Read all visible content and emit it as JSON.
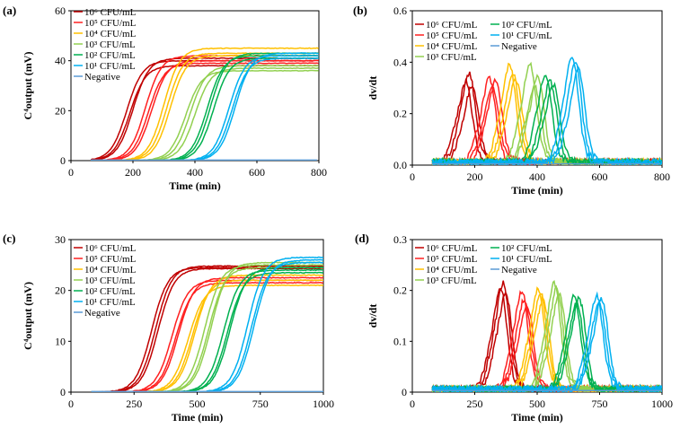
{
  "colors": {
    "1e6": "#c00000",
    "1e5": "#ff2020",
    "1e4": "#ffc000",
    "1e3": "#92d050",
    "1e2": "#00b050",
    "1e1": "#00b0f0",
    "neg": "#5b9bd5"
  },
  "chart_data": [
    {
      "type": "line",
      "panel_label": "(a)",
      "xlabel": "Time (min)",
      "ylabel": "C⁴output (mV)",
      "xlim": [
        0,
        800
      ],
      "ylim": [
        0,
        60
      ],
      "xticks": [
        0,
        200,
        400,
        600,
        800
      ],
      "yticks": [
        0,
        20,
        40,
        60
      ],
      "legend_position": "top-left",
      "series": [
        {
          "name": "10⁶ CFU/mL",
          "color_key": "1e6",
          "curves": [
            {
              "mid": 180,
              "top": 40
            },
            {
              "mid": 190,
              "top": 38
            },
            {
              "mid": 200,
              "top": 41
            }
          ]
        },
        {
          "name": "10⁵ CFU/mL",
          "color_key": "1e5",
          "curves": [
            {
              "mid": 240,
              "top": 42
            },
            {
              "mid": 250,
              "top": 39
            },
            {
              "mid": 260,
              "top": 40
            }
          ]
        },
        {
          "name": "10⁴ CFU/mL",
          "color_key": "1e4",
          "curves": [
            {
              "mid": 300,
              "top": 45
            },
            {
              "mid": 310,
              "top": 43
            },
            {
              "mid": 320,
              "top": 42
            }
          ]
        },
        {
          "name": "10³ CFU/mL",
          "color_key": "1e3",
          "curves": [
            {
              "mid": 370,
              "top": 36
            },
            {
              "mid": 385,
              "top": 38
            },
            {
              "mid": 400,
              "top": 37
            }
          ]
        },
        {
          "name": "10² CFU/mL",
          "color_key": "1e2",
          "curves": [
            {
              "mid": 440,
              "top": 42
            },
            {
              "mid": 450,
              "top": 43
            },
            {
              "mid": 460,
              "top": 41
            }
          ]
        },
        {
          "name": "10¹ CFU/mL",
          "color_key": "1e1",
          "curves": [
            {
              "mid": 510,
              "top": 42
            },
            {
              "mid": 520,
              "top": 41
            },
            {
              "mid": 530,
              "top": 43
            }
          ]
        },
        {
          "name": "Negative",
          "color_key": "neg",
          "curves": [
            {
              "mid": null,
              "top": 0.2
            }
          ]
        }
      ]
    },
    {
      "type": "line",
      "panel_label": "(b)",
      "xlabel": "Time (min)",
      "ylabel": "dv/dt",
      "xlim": [
        0,
        800
      ],
      "ylim": [
        0,
        0.6
      ],
      "xticks": [
        0,
        200,
        400,
        600,
        800
      ],
      "yticks": [
        0.0,
        0.2,
        0.4,
        0.6
      ],
      "legend_position": "top-left",
      "series": [
        {
          "name": "10⁶ CFU/mL",
          "color_key": "1e6",
          "curves": [
            {
              "mid": 175,
              "top": 0.33
            },
            {
              "mid": 165,
              "top": 0.3
            },
            {
              "mid": 185,
              "top": 0.29
            }
          ]
        },
        {
          "name": "10⁵ CFU/mL",
          "color_key": "1e5",
          "curves": [
            {
              "mid": 240,
              "top": 0.31
            },
            {
              "mid": 250,
              "top": 0.28
            },
            {
              "mid": 260,
              "top": 0.3
            }
          ]
        },
        {
          "name": "10⁴ CFU/mL",
          "color_key": "1e4",
          "curves": [
            {
              "mid": 305,
              "top": 0.36
            },
            {
              "mid": 315,
              "top": 0.33
            },
            {
              "mid": 325,
              "top": 0.31
            }
          ]
        },
        {
          "name": "10³ CFU/mL",
          "color_key": "1e3",
          "curves": [
            {
              "mid": 370,
              "top": 0.37
            },
            {
              "mid": 385,
              "top": 0.28
            },
            {
              "mid": 395,
              "top": 0.32
            }
          ]
        },
        {
          "name": "10² CFU/mL",
          "color_key": "1e2",
          "curves": [
            {
              "mid": 420,
              "top": 0.33
            },
            {
              "mid": 435,
              "top": 0.3
            },
            {
              "mid": 445,
              "top": 0.29
            }
          ]
        },
        {
          "name": "10¹ CFU/mL",
          "color_key": "1e1",
          "curves": [
            {
              "mid": 505,
              "top": 0.4
            },
            {
              "mid": 515,
              "top": 0.37
            },
            {
              "mid": 525,
              "top": 0.35
            }
          ]
        },
        {
          "name": "Negative",
          "color_key": "neg",
          "curves": [
            {
              "mid": null,
              "top": 0.005
            }
          ]
        }
      ]
    },
    {
      "type": "line",
      "panel_label": "(c)",
      "xlabel": "Time (min)",
      "ylabel": "C⁴output (mV)",
      "xlim": [
        0,
        1000
      ],
      "ylim": [
        0,
        30
      ],
      "xticks": [
        0,
        250,
        500,
        750,
        1000
      ],
      "yticks": [
        0,
        10,
        20,
        30
      ],
      "legend_position": "top-left",
      "series": [
        {
          "name": "10⁶ CFU/mL",
          "color_key": "1e6",
          "curves": [
            {
              "mid": 320,
              "top": 24.5
            },
            {
              "mid": 335,
              "top": 24.8
            },
            {
              "mid": 345,
              "top": 24.3
            }
          ]
        },
        {
          "name": "10⁵ CFU/mL",
          "color_key": "1e5",
          "curves": [
            {
              "mid": 400,
              "top": 22
            },
            {
              "mid": 415,
              "top": 21.5
            },
            {
              "mid": 425,
              "top": 22.5
            }
          ]
        },
        {
          "name": "10⁴ CFU/mL",
          "color_key": "1e4",
          "curves": [
            {
              "mid": 465,
              "top": 21
            },
            {
              "mid": 480,
              "top": 22
            },
            {
              "mid": 490,
              "top": 23
            }
          ]
        },
        {
          "name": "10³ CFU/mL",
          "color_key": "1e3",
          "curves": [
            {
              "mid": 530,
              "top": 25
            },
            {
              "mid": 545,
              "top": 24.5
            },
            {
              "mid": 555,
              "top": 25.5
            }
          ]
        },
        {
          "name": "10² CFU/mL",
          "color_key": "1e2",
          "curves": [
            {
              "mid": 605,
              "top": 24
            },
            {
              "mid": 620,
              "top": 23.5
            },
            {
              "mid": 630,
              "top": 24.5
            }
          ]
        },
        {
          "name": "10¹ CFU/mL",
          "color_key": "1e1",
          "curves": [
            {
              "mid": 700,
              "top": 26.5
            },
            {
              "mid": 715,
              "top": 25.5
            },
            {
              "mid": 725,
              "top": 26
            }
          ]
        },
        {
          "name": "Negative",
          "color_key": "neg",
          "curves": [
            {
              "mid": null,
              "top": 0.1
            }
          ]
        }
      ]
    },
    {
      "type": "line",
      "panel_label": "(d)",
      "xlabel": "Time (min)",
      "ylabel": "dv/dt",
      "xlim": [
        0,
        1000
      ],
      "ylim": [
        0,
        0.3
      ],
      "xticks": [
        0,
        250,
        500,
        750,
        1000
      ],
      "yticks": [
        0,
        0.1,
        0.2,
        0.3
      ],
      "legend_position": "top-left",
      "series": [
        {
          "name": "10⁶ CFU/mL",
          "color_key": "1e6",
          "curves": [
            {
              "mid": 355,
              "top": 0.2
            },
            {
              "mid": 345,
              "top": 0.19
            },
            {
              "mid": 365,
              "top": 0.18
            }
          ]
        },
        {
          "name": "10⁵ CFU/mL",
          "color_key": "1e5",
          "curves": [
            {
              "mid": 430,
              "top": 0.185
            },
            {
              "mid": 440,
              "top": 0.17
            },
            {
              "mid": 450,
              "top": 0.16
            }
          ]
        },
        {
          "name": "10⁴ CFU/mL",
          "color_key": "1e4",
          "curves": [
            {
              "mid": 495,
              "top": 0.19
            },
            {
              "mid": 505,
              "top": 0.18
            },
            {
              "mid": 515,
              "top": 0.17
            }
          ]
        },
        {
          "name": "10³ CFU/mL",
          "color_key": "1e3",
          "curves": [
            {
              "mid": 560,
              "top": 0.2
            },
            {
              "mid": 570,
              "top": 0.19
            },
            {
              "mid": 580,
              "top": 0.18
            }
          ]
        },
        {
          "name": "10² CFU/mL",
          "color_key": "1e2",
          "curves": [
            {
              "mid": 640,
              "top": 0.175
            },
            {
              "mid": 650,
              "top": 0.165
            },
            {
              "mid": 660,
              "top": 0.17
            }
          ]
        },
        {
          "name": "10¹ CFU/mL",
          "color_key": "1e1",
          "curves": [
            {
              "mid": 730,
              "top": 0.175
            },
            {
              "mid": 740,
              "top": 0.165
            },
            {
              "mid": 750,
              "top": 0.17
            }
          ]
        },
        {
          "name": "Negative",
          "color_key": "neg",
          "curves": [
            {
              "mid": null,
              "top": 0.003
            }
          ]
        }
      ]
    }
  ]
}
